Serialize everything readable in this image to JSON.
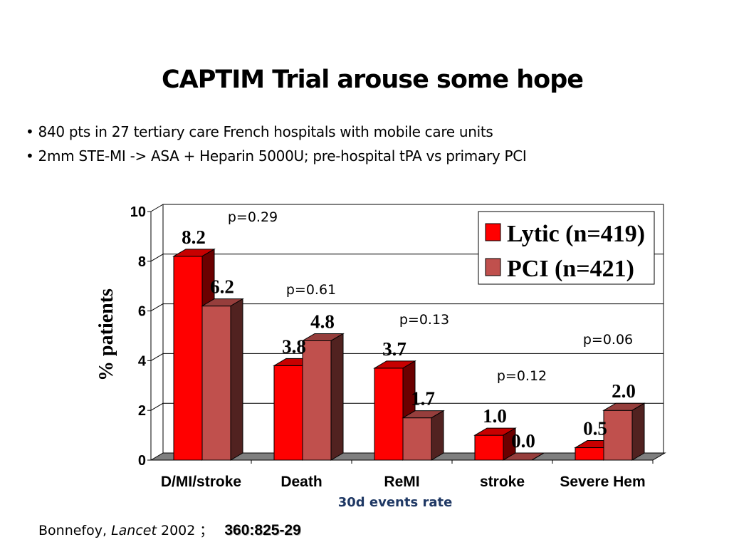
{
  "slide": {
    "title": "CAPTIM Trial arouse some hope",
    "bullets": [
      "• 840 pts in 27 tertiary care French hospitals with mobile care units",
      "• 2mm STE-MI -> ASA + Heparin 5000U;  pre-hospital tPA vs primary PCI"
    ],
    "citation": {
      "author": "Bonnefoy, ",
      "journal": "Lancet",
      "year_sep": " 2002 ；",
      "volume": "360:825-29"
    }
  },
  "chart_data": {
    "type": "bar",
    "style": "3d-clustered",
    "title": "",
    "xlabel": "30d events rate",
    "ylabel": "%  patients",
    "ylim": [
      0,
      10
    ],
    "yticks": [
      0,
      2,
      4,
      6,
      8,
      10
    ],
    "grid": true,
    "legend_position": "top-right",
    "categories": [
      "D/MI/stroke",
      "Death",
      "ReMI",
      "stroke",
      "Severe Hem"
    ],
    "series": [
      {
        "name": "Lytic (n=419)",
        "color": "#ff0000",
        "values": [
          8.2,
          3.8,
          3.7,
          1.0,
          0.5
        ],
        "labels": [
          "8.2",
          "3.8",
          "3.7",
          "1.0",
          "0.5"
        ]
      },
      {
        "name": "PCI  (n=421)",
        "color": "#c0504d",
        "values": [
          6.2,
          4.8,
          1.7,
          0.0,
          2.0
        ],
        "labels": [
          "6.2",
          "4.8",
          "1.7",
          "0.0",
          "2.0"
        ]
      }
    ],
    "p_values": [
      "p=0.29",
      "p=0.61",
      "p=0.13",
      "p=0.12",
      "p=0.06"
    ]
  }
}
